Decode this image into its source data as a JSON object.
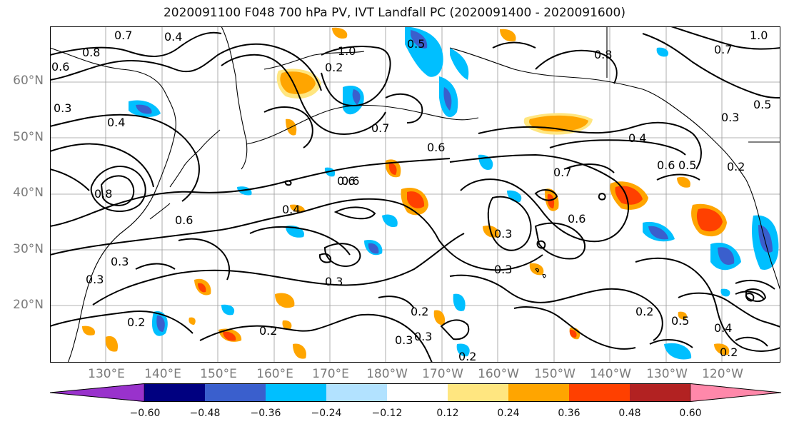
{
  "title": "2020091100 F048 700 hPa PV, IVT Landfall PC (2020091400 - 2020091600)",
  "map": {
    "lat_labels": [
      "60°N",
      "50°N",
      "40°N",
      "30°N",
      "20°N"
    ],
    "lon_labels": [
      "130°E",
      "140°E",
      "150°E",
      "160°E",
      "170°E",
      "180°W",
      "170°W",
      "160°W",
      "150°W",
      "140°W",
      "130°W",
      "120°W"
    ]
  },
  "contour_labels": [
    "0.7",
    "0.8",
    "0.6",
    "0.3",
    "0.4",
    "1.0",
    "0.2",
    "0.5",
    "0.7",
    "0.6",
    "0.4",
    "0.3",
    "0.6",
    "0.3",
    "0.2",
    "0.3",
    "0.2",
    "0.3",
    "0.2",
    "0.3",
    "0.4",
    "0.2",
    "0.5",
    "0.6",
    "0.8",
    "0.7",
    "1.0",
    "0.5",
    "0.3",
    "0.4",
    "0.7",
    "0.6",
    "0.6",
    "0.2",
    "0.6",
    "0.8",
    "0.2",
    "0.3",
    "0.4",
    "0.3",
    "0.2",
    "0.5"
  ],
  "colorbar": {
    "ticks": [
      "−0.60",
      "−0.48",
      "−0.36",
      "−0.24",
      "−0.12",
      "0.12",
      "0.24",
      "0.36",
      "0.48",
      "0.60"
    ],
    "colors": [
      "#9932CC",
      "#000080",
      "#3A5FCD",
      "#00BFFF",
      "#B2E2FF",
      "#FFFFFF",
      "#FFE680",
      "#FFA500",
      "#FF4000",
      "#B22222",
      "#FF88AA"
    ]
  }
}
